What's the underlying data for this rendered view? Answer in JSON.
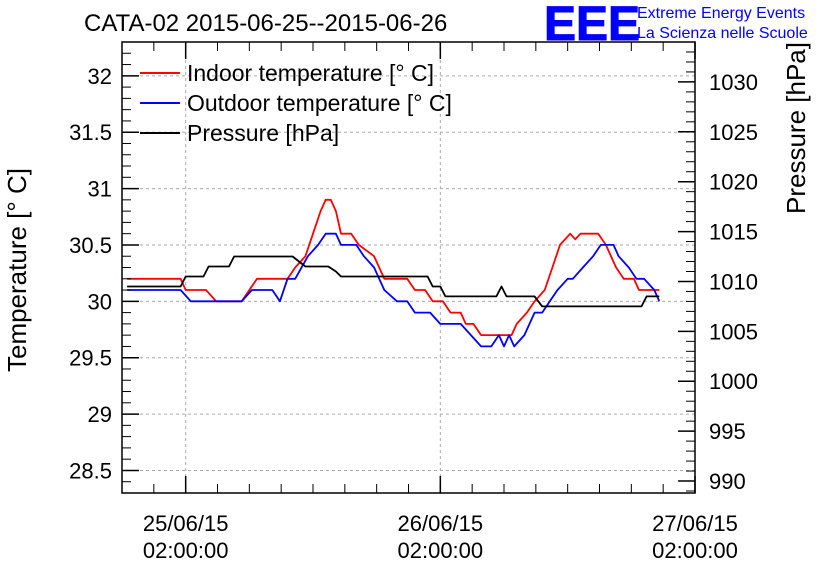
{
  "chart_data": {
    "type": "line",
    "title": "CATA-02 2015-06-25--2015-06-26",
    "ylabel": "Temperature [° C]",
    "y2label": "Pressure [hPa]",
    "xlabel": "",
    "ylim": [
      28.3,
      32.3
    ],
    "y2lim": [
      988.8,
      1034.0
    ],
    "xlim": [
      -0.25,
      2.0
    ],
    "grid": true,
    "legend_position": "top-left",
    "x_ticks": [
      {
        "x": 0,
        "line1": "25/06/15",
        "line2": "02:00:00"
      },
      {
        "x": 1,
        "line1": "26/06/15",
        "line2": "02:00:00"
      },
      {
        "x": 2,
        "line1": "27/06/15",
        "line2": "02:00:00"
      }
    ],
    "y_ticks": [
      "28.5",
      "29",
      "29.5",
      "30",
      "30.5",
      "31",
      "31.5",
      "32"
    ],
    "y2_ticks": [
      "990",
      "995",
      "1000",
      "1005",
      "1010",
      "1015",
      "1020",
      "1025",
      "1030"
    ],
    "series": [
      {
        "name": "Indoor temperature [° C]",
        "axis": "left",
        "color": "#ff0000",
        "points": [
          [
            -0.23,
            30.2
          ],
          [
            -0.02,
            30.2
          ],
          [
            0.0,
            30.1
          ],
          [
            0.08,
            30.1
          ],
          [
            0.12,
            30.0
          ],
          [
            0.22,
            30.0
          ],
          [
            0.28,
            30.2
          ],
          [
            0.4,
            30.2
          ],
          [
            0.43,
            30.3
          ],
          [
            0.47,
            30.4
          ],
          [
            0.5,
            30.6
          ],
          [
            0.53,
            30.8
          ],
          [
            0.55,
            30.9
          ],
          [
            0.57,
            30.9
          ],
          [
            0.59,
            30.8
          ],
          [
            0.61,
            30.6
          ],
          [
            0.65,
            30.6
          ],
          [
            0.68,
            30.5
          ],
          [
            0.74,
            30.4
          ],
          [
            0.78,
            30.2
          ],
          [
            0.87,
            30.2
          ],
          [
            0.9,
            30.1
          ],
          [
            0.94,
            30.1
          ],
          [
            0.97,
            30.0
          ],
          [
            1.01,
            30.0
          ],
          [
            1.04,
            29.9
          ],
          [
            1.08,
            29.9
          ],
          [
            1.1,
            29.8
          ],
          [
            1.13,
            29.8
          ],
          [
            1.16,
            29.7
          ],
          [
            1.28,
            29.7
          ],
          [
            1.3,
            29.8
          ],
          [
            1.34,
            29.9
          ],
          [
            1.37,
            30.0
          ],
          [
            1.41,
            30.1
          ],
          [
            1.44,
            30.3
          ],
          [
            1.47,
            30.5
          ],
          [
            1.51,
            30.6
          ],
          [
            1.53,
            30.55
          ],
          [
            1.55,
            30.6
          ],
          [
            1.62,
            30.6
          ],
          [
            1.65,
            30.5
          ],
          [
            1.69,
            30.3
          ],
          [
            1.72,
            30.2
          ],
          [
            1.76,
            30.2
          ],
          [
            1.78,
            30.1
          ],
          [
            1.86,
            30.1
          ]
        ]
      },
      {
        "name": "Outdoor temperature [° C]",
        "axis": "left",
        "color": "#0000ff",
        "points": [
          [
            -0.23,
            30.1
          ],
          [
            -0.02,
            30.1
          ],
          [
            0.02,
            30.0
          ],
          [
            0.08,
            30.0
          ],
          [
            0.22,
            30.0
          ],
          [
            0.26,
            30.1
          ],
          [
            0.28,
            30.1
          ],
          [
            0.34,
            30.1
          ],
          [
            0.37,
            30.0
          ],
          [
            0.4,
            30.2
          ],
          [
            0.43,
            30.2
          ],
          [
            0.48,
            30.4
          ],
          [
            0.52,
            30.5
          ],
          [
            0.55,
            30.6
          ],
          [
            0.59,
            30.6
          ],
          [
            0.61,
            30.5
          ],
          [
            0.67,
            30.5
          ],
          [
            0.7,
            30.4
          ],
          [
            0.74,
            30.3
          ],
          [
            0.78,
            30.1
          ],
          [
            0.83,
            30.0
          ],
          [
            0.87,
            30.0
          ],
          [
            0.9,
            29.9
          ],
          [
            0.96,
            29.9
          ],
          [
            1.0,
            29.8
          ],
          [
            1.04,
            29.8
          ],
          [
            1.08,
            29.8
          ],
          [
            1.12,
            29.7
          ],
          [
            1.16,
            29.6
          ],
          [
            1.2,
            29.6
          ],
          [
            1.23,
            29.7
          ],
          [
            1.25,
            29.6
          ],
          [
            1.27,
            29.7
          ],
          [
            1.29,
            29.6
          ],
          [
            1.33,
            29.7
          ],
          [
            1.37,
            29.9
          ],
          [
            1.4,
            29.9
          ],
          [
            1.43,
            30.0
          ],
          [
            1.46,
            30.1
          ],
          [
            1.5,
            30.2
          ],
          [
            1.52,
            30.2
          ],
          [
            1.56,
            30.3
          ],
          [
            1.6,
            30.4
          ],
          [
            1.63,
            30.5
          ],
          [
            1.68,
            30.5
          ],
          [
            1.7,
            30.4
          ],
          [
            1.74,
            30.3
          ],
          [
            1.77,
            30.2
          ],
          [
            1.8,
            30.2
          ],
          [
            1.84,
            30.1
          ],
          [
            1.86,
            30.0
          ]
        ]
      },
      {
        "name": "Pressure [hPa]",
        "axis": "right",
        "color": "#000000",
        "points": [
          [
            -0.23,
            1009.5
          ],
          [
            -0.02,
            1009.5
          ],
          [
            0.0,
            1010.5
          ],
          [
            0.07,
            1010.5
          ],
          [
            0.09,
            1011.5
          ],
          [
            0.17,
            1011.5
          ],
          [
            0.19,
            1012.5
          ],
          [
            0.42,
            1012.5
          ],
          [
            0.47,
            1011.5
          ],
          [
            0.56,
            1011.5
          ],
          [
            0.59,
            1011.0
          ],
          [
            0.61,
            1010.5
          ],
          [
            0.95,
            1010.5
          ],
          [
            0.97,
            1009.5
          ],
          [
            1.0,
            1009.5
          ],
          [
            1.02,
            1008.5
          ],
          [
            1.22,
            1008.5
          ],
          [
            1.24,
            1009.5
          ],
          [
            1.26,
            1008.5
          ],
          [
            1.37,
            1008.5
          ],
          [
            1.4,
            1007.5
          ],
          [
            1.79,
            1007.5
          ],
          [
            1.81,
            1008.5
          ],
          [
            1.86,
            1008.5
          ]
        ]
      }
    ]
  },
  "logo": {
    "letters": "EEE",
    "line1": "Extreme Energy Events",
    "line2": "La Scienza nelle Scuole",
    "color": "#0000ff"
  }
}
